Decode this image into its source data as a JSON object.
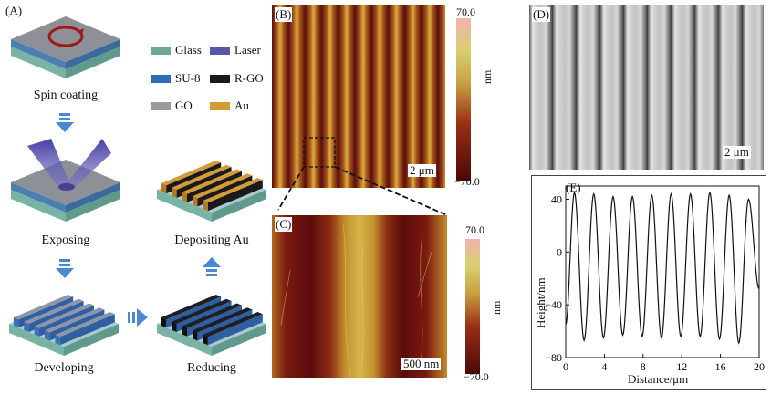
{
  "panelA": {
    "label": "(A)",
    "steps": {
      "spin": "Spin coating",
      "exposing": "Exposing",
      "developing": "Developing",
      "reducing": "Reducing",
      "depositing": "Depositing Au"
    },
    "legend": [
      {
        "name": "Glass",
        "color": "#6fa89a"
      },
      {
        "name": "Laser",
        "color": "#5a55a8"
      },
      {
        "name": "SU-8",
        "color": "#2f6db5"
      },
      {
        "name": "R-GO",
        "color": "#1a1a1a"
      },
      {
        "name": "GO",
        "color": "#9a9a9a"
      },
      {
        "name": "Au",
        "color": "#d29a35"
      }
    ]
  },
  "panelB": {
    "label": "(B)",
    "scale": "2 μm",
    "cbar_max": "70.0",
    "cbar_min": "−70.0",
    "cbar_unit": "nm"
  },
  "panelC": {
    "label": "(C)",
    "scale": "500 nm",
    "cbar_max": "70.0",
    "cbar_min": "−70.0",
    "cbar_unit": "nm"
  },
  "panelD": {
    "label": "(D)",
    "scale": "2 μm"
  },
  "panelE": {
    "label": "(E)",
    "chart_data": {
      "type": "line",
      "xlabel": "Distance/μm",
      "ylabel": "Height/nm",
      "xticks": [
        "0",
        "4",
        "8",
        "12",
        "16",
        "20"
      ],
      "yticks": [
        "40",
        "0",
        "−40",
        "−80"
      ],
      "xlim": [
        0,
        20
      ],
      "ylim": [
        -80,
        50
      ],
      "peaks_x": [
        0.9,
        2.9,
        4.9,
        6.9,
        8.9,
        10.9,
        12.9,
        14.9,
        16.9,
        18.9
      ],
      "peaks_y": [
        45,
        44,
        42,
        42,
        43,
        44,
        44,
        45,
        43,
        40
      ],
      "valleys_x": [
        1.9,
        3.9,
        5.9,
        7.9,
        9.9,
        11.9,
        13.9,
        15.9,
        17.9
      ],
      "valleys_y": [
        -67,
        -65,
        -63,
        -64,
        -65,
        -64,
        -64,
        -66,
        -69
      ],
      "start": [
        0.0,
        -55
      ],
      "end": [
        20.0,
        -28
      ]
    }
  }
}
